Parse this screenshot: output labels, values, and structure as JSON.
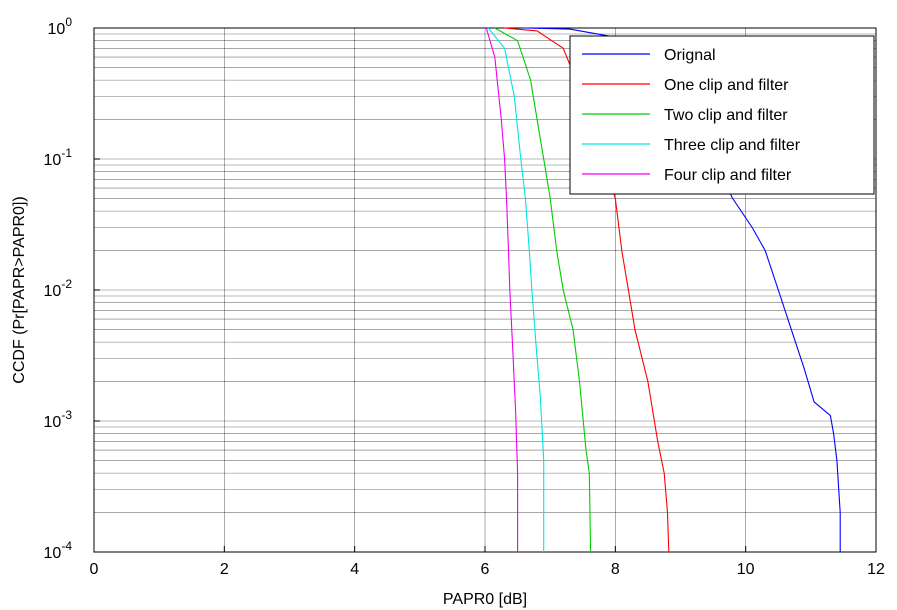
{
  "chart_data": {
    "type": "line",
    "title": "",
    "xlabel": "PAPR0 [dB]",
    "ylabel": "CCDF (Pr[PAPR>PAPR0])",
    "xlim": [
      0,
      12
    ],
    "ylim": [
      0.0001,
      1
    ],
    "yscale": "log",
    "grid": true,
    "legend_position": "top-right",
    "x_ticks": [
      {
        "value": 0,
        "label": "0"
      },
      {
        "value": 2,
        "label": "2"
      },
      {
        "value": 4,
        "label": "4"
      },
      {
        "value": 6,
        "label": "6"
      },
      {
        "value": 8,
        "label": "8"
      },
      {
        "value": 10,
        "label": "10"
      },
      {
        "value": 12,
        "label": "12"
      }
    ],
    "y_ticks": [
      {
        "value": 1,
        "base": "10",
        "exp": "0"
      },
      {
        "value": 0.1,
        "base": "10",
        "exp": "-1"
      },
      {
        "value": 0.01,
        "base": "10",
        "exp": "-2"
      },
      {
        "value": 0.001,
        "base": "10",
        "exp": "-3"
      },
      {
        "value": 0.0001,
        "base": "10",
        "exp": "-4"
      }
    ],
    "series": [
      {
        "name": "Orignal",
        "color": "#0000ff",
        "points": [
          [
            6.6,
            1
          ],
          [
            7.3,
            0.98
          ],
          [
            8.0,
            0.85
          ],
          [
            8.5,
            0.6
          ],
          [
            9.0,
            0.3
          ],
          [
            9.3,
            0.15
          ],
          [
            9.5,
            0.1
          ],
          [
            9.8,
            0.05
          ],
          [
            10.1,
            0.03
          ],
          [
            10.3,
            0.02
          ],
          [
            10.5,
            0.01
          ],
          [
            10.7,
            0.005
          ],
          [
            10.9,
            0.0025
          ],
          [
            11.05,
            0.0014
          ],
          [
            11.3,
            0.0011
          ],
          [
            11.35,
            0.0008
          ],
          [
            11.4,
            0.0005
          ],
          [
            11.45,
            0.0002
          ],
          [
            11.45,
            0.0001
          ]
        ]
      },
      {
        "name": "One clip and filter",
        "color": "#ff0000",
        "points": [
          [
            6.3,
            1
          ],
          [
            6.8,
            0.95
          ],
          [
            7.2,
            0.7
          ],
          [
            7.4,
            0.4
          ],
          [
            7.6,
            0.2
          ],
          [
            7.7,
            0.12
          ],
          [
            7.8,
            0.1
          ],
          [
            8.0,
            0.05
          ],
          [
            8.1,
            0.02
          ],
          [
            8.2,
            0.01
          ],
          [
            8.3,
            0.005
          ],
          [
            8.5,
            0.002
          ],
          [
            8.65,
            0.0007
          ],
          [
            8.75,
            0.0004
          ],
          [
            8.8,
            0.0002
          ],
          [
            8.82,
            0.0001
          ]
        ]
      },
      {
        "name": "Two clip and filter",
        "color": "#00cc00",
        "points": [
          [
            6.15,
            1
          ],
          [
            6.5,
            0.8
          ],
          [
            6.7,
            0.4
          ],
          [
            6.8,
            0.2
          ],
          [
            6.9,
            0.1
          ],
          [
            7.0,
            0.05
          ],
          [
            7.1,
            0.02
          ],
          [
            7.2,
            0.01
          ],
          [
            7.35,
            0.005
          ],
          [
            7.45,
            0.002
          ],
          [
            7.55,
            0.0006
          ],
          [
            7.6,
            0.0004
          ],
          [
            7.62,
            0.0001
          ]
        ]
      },
      {
        "name": "Three clip and filter",
        "color": "#00e5e5",
        "points": [
          [
            6.05,
            1
          ],
          [
            6.3,
            0.7
          ],
          [
            6.45,
            0.3
          ],
          [
            6.55,
            0.1
          ],
          [
            6.62,
            0.05
          ],
          [
            6.68,
            0.02
          ],
          [
            6.72,
            0.01
          ],
          [
            6.78,
            0.004
          ],
          [
            6.85,
            0.0015
          ],
          [
            6.9,
            0.0005
          ],
          [
            6.9,
            0.0001
          ]
        ]
      },
      {
        "name": "Four clip and filter",
        "color": "#ee00ee",
        "points": [
          [
            6.02,
            1
          ],
          [
            6.15,
            0.6
          ],
          [
            6.25,
            0.2
          ],
          [
            6.3,
            0.1
          ],
          [
            6.33,
            0.05
          ],
          [
            6.36,
            0.02
          ],
          [
            6.38,
            0.01
          ],
          [
            6.42,
            0.004
          ],
          [
            6.47,
            0.0012
          ],
          [
            6.5,
            0.0004
          ],
          [
            6.5,
            0.0001
          ]
        ]
      }
    ]
  }
}
